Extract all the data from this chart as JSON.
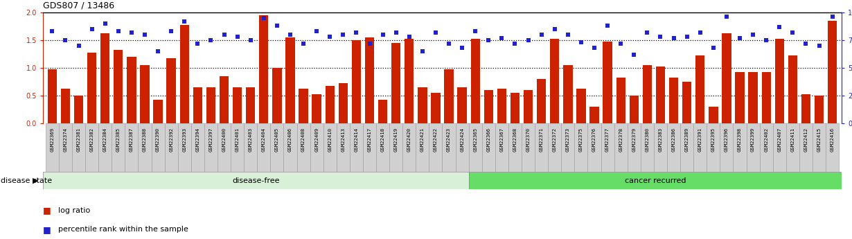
{
  "title": "GDS807 / 13486",
  "samples": [
    "GSM22369",
    "GSM22374",
    "GSM22381",
    "GSM22382",
    "GSM22384",
    "GSM22385",
    "GSM22387",
    "GSM22388",
    "GSM22390",
    "GSM22392",
    "GSM22393",
    "GSM22394",
    "GSM22397",
    "GSM22400",
    "GSM22401",
    "GSM22403",
    "GSM22404",
    "GSM22405",
    "GSM22406",
    "GSM22408",
    "GSM22409",
    "GSM22410",
    "GSM22413",
    "GSM22414",
    "GSM22417",
    "GSM22418",
    "GSM22419",
    "GSM22420",
    "GSM22421",
    "GSM22422",
    "GSM22423",
    "GSM22424",
    "GSM22365",
    "GSM22366",
    "GSM22367",
    "GSM22368",
    "GSM22370",
    "GSM22371",
    "GSM22372",
    "GSM22373",
    "GSM22375",
    "GSM22376",
    "GSM22377",
    "GSM22378",
    "GSM22379",
    "GSM22380",
    "GSM22383",
    "GSM22386",
    "GSM22389",
    "GSM22391",
    "GSM22395",
    "GSM22396",
    "GSM22398",
    "GSM22399",
    "GSM22402",
    "GSM22407",
    "GSM22411",
    "GSM22412",
    "GSM22415",
    "GSM22416"
  ],
  "log_ratio": [
    0.97,
    0.62,
    0.5,
    1.28,
    1.63,
    1.32,
    1.2,
    1.05,
    0.42,
    1.18,
    1.78,
    0.65,
    0.65,
    0.85,
    0.65,
    0.65,
    1.95,
    1.0,
    1.55,
    0.62,
    0.52,
    0.68,
    0.72,
    1.5,
    1.55,
    0.42,
    1.45,
    1.52,
    0.65,
    0.55,
    0.97,
    0.65,
    1.52,
    0.6,
    0.62,
    0.55,
    0.6,
    0.8,
    1.52,
    1.05,
    0.62,
    0.3,
    1.48,
    0.82,
    0.5,
    1.05,
    1.02,
    0.82,
    0.75,
    1.22,
    0.3,
    1.62,
    0.92,
    0.92,
    0.92,
    1.52,
    1.22,
    0.52,
    0.5,
    1.85
  ],
  "percentile": [
    83,
    75,
    70,
    85,
    90,
    83,
    82,
    80,
    65,
    83,
    92,
    72,
    75,
    80,
    78,
    75,
    95,
    88,
    80,
    72,
    83,
    78,
    80,
    82,
    72,
    80,
    82,
    78,
    65,
    82,
    72,
    68,
    83,
    75,
    77,
    72,
    75,
    80,
    85,
    80,
    73,
    68,
    88,
    72,
    62,
    82,
    78,
    77,
    78,
    82,
    68,
    96,
    77,
    80,
    75,
    87,
    82,
    72,
    70,
    96
  ],
  "disease_free_count": 32,
  "bar_color": "#cc2200",
  "dot_color": "#2222cc",
  "bg_color_disease_free": "#d8f0d8",
  "bg_color_cancer_recurred": "#66dd66",
  "left_tick_color": "#cc2200",
  "right_tick_color": "#2222cc",
  "yticks_left": [
    0,
    0.5,
    1.0,
    1.5,
    2.0
  ],
  "yticks_right": [
    0,
    25,
    50,
    75,
    100
  ],
  "ylim_left": [
    0,
    2.0
  ],
  "ylim_right": [
    0,
    100
  ],
  "dotted_lines": [
    0.5,
    1.0,
    1.5
  ],
  "label_disease_state": "disease state",
  "label_disease_free": "disease-free",
  "label_cancer_recurred": "cancer recurred",
  "legend_bar": "log ratio",
  "legend_dot": "percentile rank within the sample"
}
